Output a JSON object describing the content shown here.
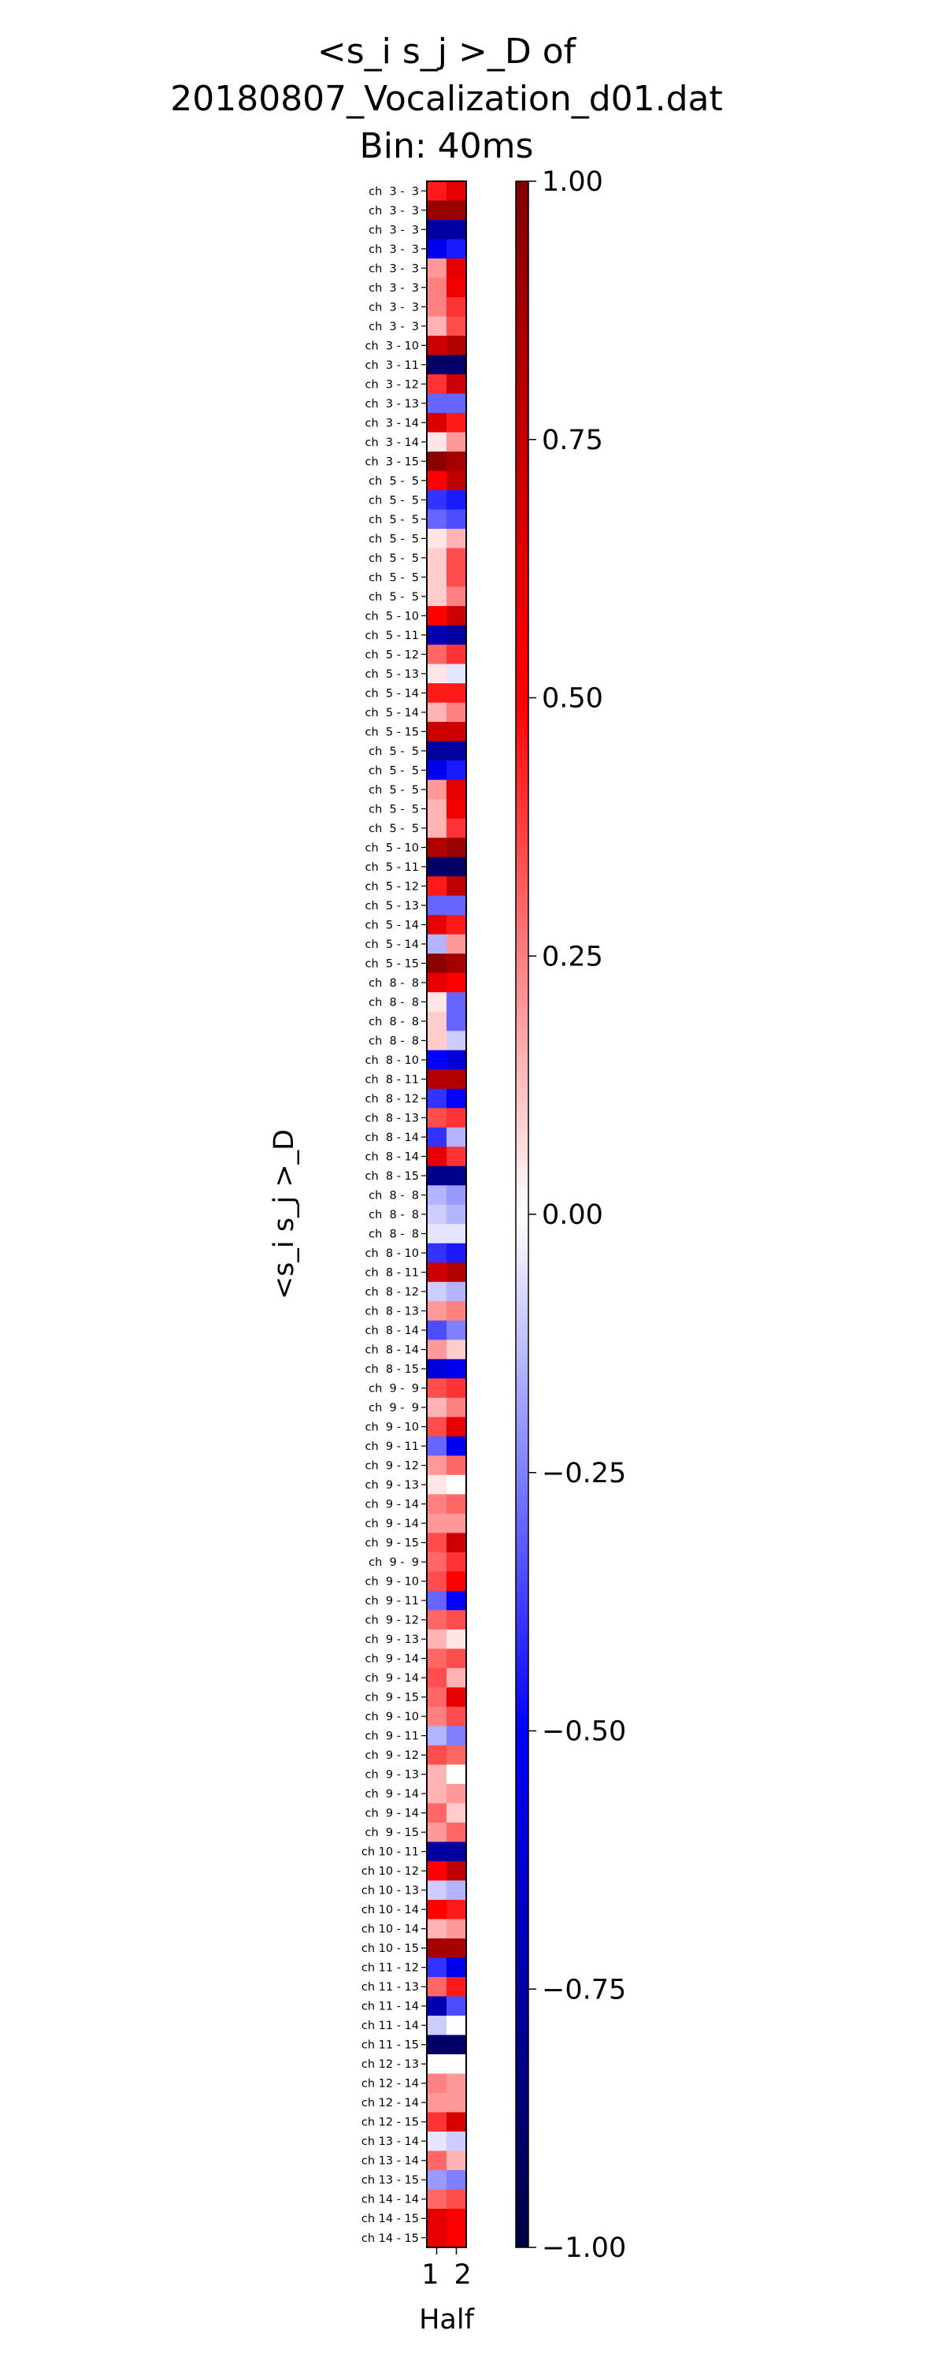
{
  "chart_data": {
    "type": "heatmap",
    "title_lines": [
      "<s_i s_j >_D of",
      "20180807_Vocalization_d01.dat",
      "Bin: 40ms"
    ],
    "ylabel": "<s_i s_j >_D",
    "xlabel": "Half",
    "x_categories": [
      "1",
      "2"
    ],
    "row_labels": [
      "ch  3 -  3",
      "ch  3 -  3",
      "ch  3 -  3",
      "ch  3 -  3",
      "ch  3 -  3",
      "ch  3 -  3",
      "ch  3 -  3",
      "ch  3 -  3",
      "ch  3 - 10",
      "ch  3 - 11",
      "ch  3 - 12",
      "ch  3 - 13",
      "ch  3 - 14",
      "ch  3 - 14",
      "ch  3 - 15",
      "ch  5 -  5",
      "ch  5 -  5",
      "ch  5 -  5",
      "ch  5 -  5",
      "ch  5 -  5",
      "ch  5 -  5",
      "ch  5 -  5",
      "ch  5 - 10",
      "ch  5 - 11",
      "ch  5 - 12",
      "ch  5 - 13",
      "ch  5 - 14",
      "ch  5 - 14",
      "ch  5 - 15",
      "ch  5 -  5",
      "ch  5 -  5",
      "ch  5 -  5",
      "ch  5 -  5",
      "ch  5 -  5",
      "ch  5 - 10",
      "ch  5 - 11",
      "ch  5 - 12",
      "ch  5 - 13",
      "ch  5 - 14",
      "ch  5 - 14",
      "ch  5 - 15",
      "ch  8 -  8",
      "ch  8 -  8",
      "ch  8 -  8",
      "ch  8 -  8",
      "ch  8 - 10",
      "ch  8 - 11",
      "ch  8 - 12",
      "ch  8 - 13",
      "ch  8 - 14",
      "ch  8 - 14",
      "ch  8 - 15",
      "ch  8 -  8",
      "ch  8 -  8",
      "ch  8 -  8",
      "ch  8 - 10",
      "ch  8 - 11",
      "ch  8 - 12",
      "ch  8 - 13",
      "ch  8 - 14",
      "ch  8 - 14",
      "ch  8 - 15",
      "ch  9 -  9",
      "ch  9 -  9",
      "ch  9 - 10",
      "ch  9 - 11",
      "ch  9 - 12",
      "ch  9 - 13",
      "ch  9 - 14",
      "ch  9 - 14",
      "ch  9 - 15",
      "ch  9 -  9",
      "ch  9 - 10",
      "ch  9 - 11",
      "ch  9 - 12",
      "ch  9 - 13",
      "ch  9 - 14",
      "ch  9 - 14",
      "ch  9 - 15",
      "ch  9 - 10",
      "ch  9 - 11",
      "ch  9 - 12",
      "ch  9 - 13",
      "ch  9 - 14",
      "ch  9 - 14",
      "ch  9 - 15",
      "ch 10 - 11",
      "ch 10 - 12",
      "ch 10 - 13",
      "ch 10 - 14",
      "ch 10 - 14",
      "ch 10 - 15",
      "ch 11 - 12",
      "ch 11 - 13",
      "ch 11 - 14",
      "ch 11 - 14",
      "ch 11 - 15",
      "ch 12 - 13",
      "ch 12 - 14",
      "ch 12 - 14",
      "ch 12 - 15",
      "ch 13 - 14",
      "ch 13 - 14",
      "ch 13 - 15",
      "ch 14 - 14",
      "ch 14 - 15",
      "ch 14 - 15"
    ],
    "values": [
      [
        0.45,
        0.6
      ],
      [
        0.9,
        0.9
      ],
      [
        -0.75,
        -0.75
      ],
      [
        -0.55,
        -0.45
      ],
      [
        0.2,
        0.6
      ],
      [
        0.25,
        0.55
      ],
      [
        0.25,
        0.4
      ],
      [
        0.15,
        0.35
      ],
      [
        0.7,
        0.8
      ],
      [
        -0.9,
        -0.9
      ],
      [
        0.4,
        0.7
      ],
      [
        -0.3,
        -0.3
      ],
      [
        0.65,
        0.45
      ],
      [
        0.05,
        0.2
      ],
      [
        0.95,
        0.85
      ],
      [
        0.5,
        0.75
      ],
      [
        -0.4,
        -0.45
      ],
      [
        -0.3,
        -0.35
      ],
      [
        0.05,
        0.15
      ],
      [
        0.1,
        0.35
      ],
      [
        0.1,
        0.35
      ],
      [
        0.1,
        0.25
      ],
      [
        0.5,
        0.7
      ],
      [
        -0.7,
        -0.75
      ],
      [
        0.3,
        0.4
      ],
      [
        0.05,
        -0.05
      ],
      [
        0.45,
        0.45
      ],
      [
        0.15,
        0.25
      ],
      [
        0.7,
        0.7
      ],
      [
        -0.75,
        -0.75
      ],
      [
        -0.55,
        -0.45
      ],
      [
        0.2,
        0.6
      ],
      [
        0.15,
        0.55
      ],
      [
        0.15,
        0.4
      ],
      [
        0.8,
        0.9
      ],
      [
        -0.9,
        -0.9
      ],
      [
        0.45,
        0.75
      ],
      [
        -0.3,
        -0.3
      ],
      [
        0.6,
        0.45
      ],
      [
        -0.15,
        0.2
      ],
      [
        0.95,
        0.85
      ],
      [
        0.6,
        0.5
      ],
      [
        0.05,
        -0.3
      ],
      [
        0.1,
        -0.3
      ],
      [
        0.1,
        -0.1
      ],
      [
        -0.5,
        -0.6
      ],
      [
        0.8,
        0.8
      ],
      [
        -0.4,
        -0.5
      ],
      [
        0.35,
        0.4
      ],
      [
        -0.4,
        -0.15
      ],
      [
        0.6,
        0.4
      ],
      [
        -0.8,
        -0.8
      ],
      [
        -0.15,
        -0.2
      ],
      [
        -0.1,
        -0.15
      ],
      [
        -0.05,
        -0.05
      ],
      [
        -0.4,
        -0.45
      ],
      [
        0.7,
        0.8
      ],
      [
        -0.1,
        -0.15
      ],
      [
        0.2,
        0.25
      ],
      [
        -0.35,
        -0.25
      ],
      [
        0.2,
        0.1
      ],
      [
        -0.6,
        -0.55
      ],
      [
        0.35,
        0.4
      ],
      [
        0.15,
        0.25
      ],
      [
        0.35,
        0.6
      ],
      [
        -0.3,
        -0.55
      ],
      [
        0.2,
        0.3
      ],
      [
        0.05,
        0.0
      ],
      [
        0.25,
        0.3
      ],
      [
        0.2,
        0.2
      ],
      [
        0.35,
        0.7
      ],
      [
        0.3,
        0.4
      ],
      [
        0.35,
        0.5
      ],
      [
        -0.3,
        -0.5
      ],
      [
        0.3,
        0.35
      ],
      [
        0.15,
        0.05
      ],
      [
        0.3,
        0.35
      ],
      [
        0.35,
        0.15
      ],
      [
        0.3,
        0.6
      ],
      [
        0.25,
        0.35
      ],
      [
        -0.15,
        -0.25
      ],
      [
        0.35,
        0.3
      ],
      [
        0.15,
        0.0
      ],
      [
        0.15,
        0.2
      ],
      [
        0.3,
        0.1
      ],
      [
        0.2,
        0.3
      ],
      [
        -0.75,
        -0.75
      ],
      [
        0.5,
        0.75
      ],
      [
        -0.1,
        -0.15
      ],
      [
        0.5,
        0.45
      ],
      [
        0.15,
        0.2
      ],
      [
        0.85,
        0.85
      ],
      [
        -0.4,
        -0.55
      ],
      [
        0.3,
        0.45
      ],
      [
        -0.7,
        -0.35
      ],
      [
        -0.1,
        0.0
      ],
      [
        -0.9,
        -0.9
      ],
      [
        0.0,
        0.0
      ],
      [
        0.25,
        0.2
      ],
      [
        0.2,
        0.2
      ],
      [
        0.4,
        0.65
      ],
      [
        -0.05,
        -0.1
      ],
      [
        0.3,
        0.15
      ],
      [
        -0.2,
        -0.25
      ],
      [
        0.3,
        0.35
      ],
      [
        0.6,
        0.5
      ],
      [
        0.6,
        0.5
      ]
    ],
    "colorbar": {
      "colormap": "seismic",
      "vmin": -1.0,
      "vmax": 1.0,
      "ticks": [
        1.0,
        0.75,
        0.5,
        0.25,
        0.0,
        -0.25,
        -0.5,
        -0.75,
        -1.0
      ],
      "tick_labels": [
        "1.00",
        "0.75",
        "0.50",
        "0.25",
        "0.00",
        "−0.25",
        "−0.50",
        "−0.75",
        "−1.00"
      ]
    }
  }
}
